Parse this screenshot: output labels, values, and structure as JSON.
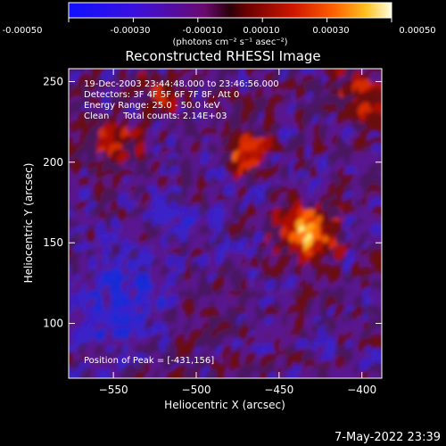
{
  "colorbar": {
    "ticks": [
      "-0.00050",
      "-0.00030",
      "-0.00010",
      "0.00010",
      "0.00030",
      "0.00050"
    ],
    "unit": "(photons cm⁻² s⁻¹ asec⁻²)",
    "range": [
      -0.0005,
      0.0005
    ]
  },
  "chart_data": {
    "type": "heatmap",
    "title": "Reconstructed RHESSI Image",
    "xlabel": "Heliocentric X (arcsec)",
    "ylabel": "Heliocentric Y (arcsec)",
    "xlim": [
      -577,
      -388
    ],
    "ylim": [
      66,
      258
    ],
    "xticks": [
      -550,
      -500,
      -450,
      -400
    ],
    "yticks": [
      100,
      150,
      200,
      250
    ],
    "colormap": "red-temperature with blue-purple negatives",
    "peak": {
      "x": -431,
      "y": 156
    },
    "annotations": [
      "19-Dec-2003 23:44:48.000 to 23:46:56.000",
      "Detectors: 3F 4F 5F 6F 7F 8F, Att 0",
      "Energy Range: 25.0 - 50.0 keV",
      "Clean     Total counts: 2.14E+03",
      "Position of Peak = [-431,156]"
    ]
  },
  "footer": {
    "timestamp": "7-May-2022 23:39"
  },
  "colors": {
    "background": "#000000",
    "negative": "#3a2bd0",
    "zero": "#4a1a60",
    "positive": "#ff3000",
    "peak": "#ffff80"
  }
}
